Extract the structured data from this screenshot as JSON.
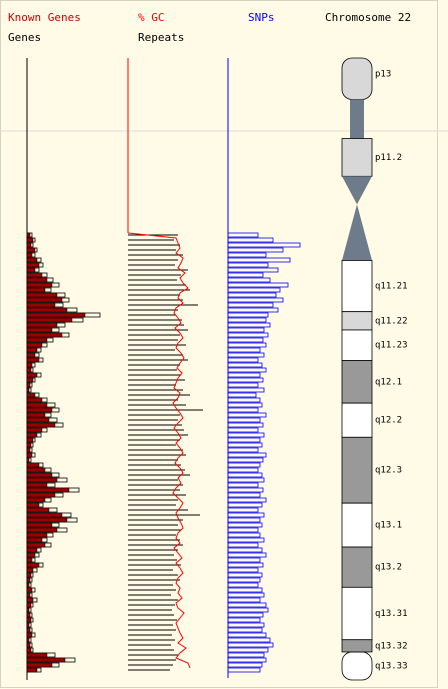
{
  "chart_data": {
    "type": "ideogram",
    "title": "Chromosome 22",
    "tracks": [
      {
        "name": "Known Genes",
        "color": "#990000",
        "xlim": [
          0,
          100
        ],
        "values": [
          3,
          6,
          4,
          8,
          5,
          10,
          12,
          8,
          15,
          20,
          25,
          18,
          30,
          35,
          28,
          40,
          58,
          45,
          30,
          25,
          35,
          20,
          15,
          10,
          8,
          12,
          5,
          4,
          10,
          6,
          3,
          2,
          8,
          15,
          20,
          25,
          18,
          22,
          28,
          15,
          10,
          6,
          4,
          3,
          5,
          2,
          12,
          18,
          25,
          30,
          20,
          42,
          28,
          18,
          12,
          22,
          35,
          40,
          25,
          30,
          20,
          15,
          18,
          10,
          8,
          5,
          12,
          6,
          4,
          3,
          2,
          5,
          3,
          6,
          4,
          2,
          3,
          4,
          2,
          3,
          5,
          2,
          3,
          4,
          20,
          38,
          25,
          10
        ]
      },
      {
        "name": "Genes",
        "color": "#000000",
        "xlim": [
          0,
          100
        ],
        "values": [
          5,
          8,
          6,
          10,
          8,
          14,
          16,
          12,
          20,
          26,
          32,
          24,
          38,
          42,
          36,
          50,
          73,
          56,
          38,
          32,
          42,
          26,
          20,
          14,
          12,
          16,
          8,
          6,
          14,
          8,
          5,
          4,
          12,
          20,
          28,
          32,
          24,
          30,
          36,
          20,
          14,
          8,
          6,
          5,
          8,
          4,
          16,
          24,
          32,
          40,
          28,
          52,
          36,
          24,
          16,
          30,
          44,
          50,
          32,
          40,
          26,
          20,
          24,
          14,
          12,
          8,
          16,
          10,
          6,
          5,
          4,
          8,
          5,
          10,
          6,
          4,
          5,
          6,
          4,
          5,
          8,
          4,
          5,
          6,
          28,
          48,
          32,
          14
        ]
      },
      {
        "name": "% GC",
        "color": "#ff0000",
        "xlim": [
          0,
          100
        ],
        "values": [
          0,
          48,
          50,
          52,
          48,
          55,
          53,
          50,
          57,
          52,
          55,
          60,
          52,
          50,
          55,
          48,
          46,
          50,
          53,
          47,
          52,
          55,
          50,
          48,
          53,
          56,
          52,
          49,
          54,
          50,
          48,
          46,
          52,
          50,
          45,
          48,
          52,
          55,
          50,
          46,
          50,
          53,
          48,
          52,
          55,
          50,
          47,
          52,
          55,
          50,
          53,
          48,
          45,
          50,
          55,
          52,
          48,
          50,
          53,
          55,
          50,
          48,
          52,
          46,
          50,
          54,
          48,
          52,
          55,
          50,
          48,
          52,
          50,
          54,
          48,
          50,
          56,
          52,
          48,
          50,
          52,
          55,
          50,
          58,
          52,
          48,
          60,
          62
        ]
      },
      {
        "name": "Repeats",
        "color": "#000000",
        "xlim": [
          0,
          100
        ],
        "values": [
          50,
          46,
          52,
          48,
          55,
          50,
          47,
          60,
          53,
          49,
          58,
          62,
          52,
          55,
          70,
          50,
          48,
          54,
          56,
          60,
          52,
          50,
          58,
          47,
          55,
          60,
          52,
          49,
          53,
          57,
          48,
          55,
          62,
          50,
          58,
          75,
          52,
          50,
          54,
          56,
          60,
          52,
          48,
          55,
          58,
          50,
          53,
          57,
          62,
          50,
          55,
          52,
          58,
          50,
          48,
          60,
          72,
          55,
          50,
          53,
          48,
          52,
          55,
          50,
          46,
          49,
          53,
          45,
          50,
          52,
          45,
          48,
          43,
          50,
          47,
          44,
          46,
          49,
          45,
          48,
          44,
          47,
          43,
          46,
          50,
          48,
          45,
          42
        ]
      },
      {
        "name": "SNPs",
        "color": "#0000ff",
        "xlim": [
          0,
          100
        ],
        "values": [
          30,
          45,
          72,
          55,
          38,
          62,
          40,
          50,
          35,
          42,
          60,
          52,
          48,
          55,
          45,
          50,
          40,
          38,
          42,
          36,
          40,
          35,
          38,
          32,
          36,
          30,
          34,
          38,
          32,
          35,
          30,
          36,
          28,
          32,
          34,
          30,
          38,
          32,
          35,
          30,
          36,
          32,
          34,
          30,
          38,
          35,
          32,
          30,
          34,
          36,
          30,
          35,
          32,
          38,
          34,
          30,
          36,
          32,
          34,
          30,
          32,
          36,
          30,
          34,
          38,
          32,
          35,
          30,
          34,
          32,
          30,
          34,
          36,
          32,
          38,
          40,
          35,
          32,
          36,
          34,
          38,
          42,
          45,
          40,
          36,
          38,
          34,
          32
        ]
      }
    ],
    "ylim": [
      0,
      51
    ],
    "bands": [
      {
        "label": "p13",
        "start": 0,
        "end": 3.4,
        "stain": "gpos25",
        "color": "#d8d8d8"
      },
      {
        "label": null,
        "start": 3.4,
        "end": 6.6,
        "stain": "stalk",
        "color": "#6e7b8b"
      },
      {
        "label": "p11.2",
        "start": 6.6,
        "end": 9.7,
        "stain": "gpos25",
        "color": "#d8d8d8"
      },
      {
        "label": null,
        "start": 9.7,
        "end": 12,
        "stain": "acen-p",
        "color": "#6e7b8b"
      },
      {
        "label": null,
        "start": 12,
        "end": 16.6,
        "stain": "acen-q",
        "color": "#6e7b8b"
      },
      {
        "label": "q11.21",
        "start": 16.6,
        "end": 20.8,
        "stain": "gneg",
        "color": "#ffffff"
      },
      {
        "label": "q11.22",
        "start": 20.8,
        "end": 22.3,
        "stain": "gpos25",
        "color": "#d8d8d8"
      },
      {
        "label": "q11.23",
        "start": 22.3,
        "end": 24.8,
        "stain": "gneg",
        "color": "#ffffff"
      },
      {
        "label": "q12.1",
        "start": 24.8,
        "end": 28.3,
        "stain": "gpos50",
        "color": "#999999"
      },
      {
        "label": "q12.2",
        "start": 28.3,
        "end": 31.1,
        "stain": "gneg",
        "color": "#ffffff"
      },
      {
        "label": "q12.3",
        "start": 31.1,
        "end": 36.5,
        "stain": "gpos50",
        "color": "#999999"
      },
      {
        "label": "q13.1",
        "start": 36.5,
        "end": 40.1,
        "stain": "gneg",
        "color": "#ffffff"
      },
      {
        "label": "q13.2",
        "start": 40.1,
        "end": 43.4,
        "stain": "gpos50",
        "color": "#999999"
      },
      {
        "label": "q13.31",
        "start": 43.4,
        "end": 47.7,
        "stain": "gneg",
        "color": "#ffffff"
      },
      {
        "label": "q13.32",
        "start": 47.7,
        "end": 48.7,
        "stain": "gpos50",
        "color": "#999999"
      },
      {
        "label": "q13.33",
        "start": 48.7,
        "end": 51,
        "stain": "gneg",
        "color": "#ffffff"
      }
    ]
  }
}
